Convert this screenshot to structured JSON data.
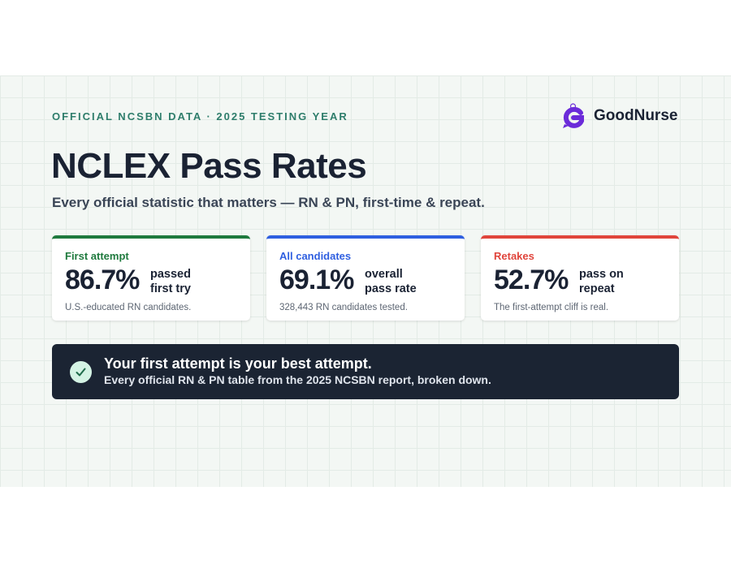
{
  "header": {
    "eyebrow": "OFFICIAL NCSBN DATA · 2025 TESTING YEAR",
    "brand": "GoodNurse",
    "title": "NCLEX Pass Rates",
    "subtitle": "Every official statistic that matters — RN & PN, first-time & repeat."
  },
  "cards": [
    {
      "label": "First attempt",
      "value": "86.7%",
      "caption": "passed first try",
      "note": "U.S.-educated RN candidates."
    },
    {
      "label": "All candidates",
      "value": "69.1%",
      "caption": "overall pass rate",
      "note": "328,443 RN candidates tested."
    },
    {
      "label": "Retakes",
      "value": "52.7%",
      "caption": "pass on repeat",
      "note": "The first-attempt cliff is real."
    }
  ],
  "banner": {
    "title": "Your first attempt is your best attempt.",
    "text": "Every official RN & PN table from the 2025 NCSBN report, broken down."
  }
}
